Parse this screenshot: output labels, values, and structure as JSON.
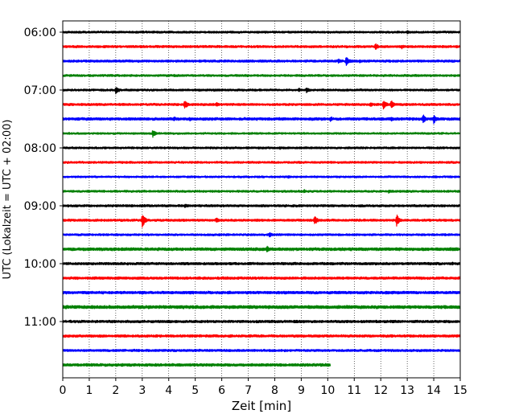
{
  "chart_data": {
    "type": "line",
    "title": "",
    "xlabel": "Zeit  [min]",
    "ylabel": "UTC (Lokalzeit = UTC + 02:00)",
    "xlim": [
      0,
      15
    ],
    "x_ticks": [
      0,
      1,
      2,
      3,
      4,
      5,
      6,
      7,
      8,
      9,
      10,
      11,
      12,
      13,
      14,
      15
    ],
    "x_grid": true,
    "y_grid": false,
    "y_ticks": [
      {
        "label": "06:00",
        "row": 0
      },
      {
        "label": "07:00",
        "row": 4
      },
      {
        "label": "08:00",
        "row": 8
      },
      {
        "label": "09:00",
        "row": 12
      },
      {
        "label": "10:00",
        "row": 16
      },
      {
        "label": "11:00",
        "row": 20
      }
    ],
    "row_colors": [
      "#000000",
      "#ff0000",
      "#0000ff",
      "#008000"
    ],
    "rows": [
      {
        "start": "06:00",
        "amp": 0.9,
        "end": 15,
        "events": [
          {
            "t": 13.0,
            "a": 2.5
          }
        ]
      },
      {
        "start": "06:15",
        "amp": 1.0,
        "end": 15,
        "events": [
          {
            "t": 11.8,
            "a": 4.5
          },
          {
            "t": 12.8,
            "a": 2.5
          },
          {
            "t": 5.5,
            "a": 1.8
          }
        ]
      },
      {
        "start": "06:30",
        "amp": 1.0,
        "end": 15,
        "events": [
          {
            "t": 10.7,
            "a": 6.5
          },
          {
            "t": 10.4,
            "a": 3.0
          },
          {
            "t": 11.2,
            "a": 2.5
          }
        ]
      },
      {
        "start": "06:45",
        "amp": 0.9,
        "end": 15,
        "events": [
          {
            "t": 4.2,
            "a": 1.8
          }
        ]
      },
      {
        "start": "07:00",
        "amp": 0.9,
        "end": 15,
        "events": [
          {
            "t": 2.0,
            "a": 5.0
          },
          {
            "t": 9.2,
            "a": 4.0
          },
          {
            "t": 8.9,
            "a": 2.5
          }
        ]
      },
      {
        "start": "07:15",
        "amp": 1.0,
        "end": 15,
        "events": [
          {
            "t": 4.6,
            "a": 6.0
          },
          {
            "t": 5.8,
            "a": 3.0
          },
          {
            "t": 12.1,
            "a": 6.5
          },
          {
            "t": 12.4,
            "a": 5.5
          },
          {
            "t": 11.6,
            "a": 3.0
          },
          {
            "t": 1.3,
            "a": 2.0
          }
        ]
      },
      {
        "start": "07:30",
        "amp": 1.2,
        "end": 15,
        "events": [
          {
            "t": 13.6,
            "a": 5.5
          },
          {
            "t": 14.0,
            "a": 6.0
          },
          {
            "t": 10.1,
            "a": 3.5
          },
          {
            "t": 12.4,
            "a": 3.0
          },
          {
            "t": 4.2,
            "a": 3.0
          },
          {
            "t": 4.8,
            "a": 2.5
          }
        ]
      },
      {
        "start": "07:45",
        "amp": 0.8,
        "end": 15,
        "events": [
          {
            "t": 3.4,
            "a": 5.0
          }
        ]
      },
      {
        "start": "08:00",
        "amp": 0.9,
        "end": 15,
        "events": [
          {
            "t": 8.2,
            "a": 2.0
          }
        ]
      },
      {
        "start": "08:15",
        "amp": 0.9,
        "end": 15,
        "events": [
          {
            "t": 13.5,
            "a": 1.5
          }
        ]
      },
      {
        "start": "08:30",
        "amp": 0.8,
        "end": 15,
        "events": [
          {
            "t": 8.5,
            "a": 1.8
          }
        ]
      },
      {
        "start": "08:45",
        "amp": 0.9,
        "end": 15,
        "events": [
          {
            "t": 9.1,
            "a": 2.5
          },
          {
            "t": 12.3,
            "a": 2.5
          }
        ]
      },
      {
        "start": "09:00",
        "amp": 1.0,
        "end": 15,
        "events": [
          {
            "t": 4.6,
            "a": 3.0
          },
          {
            "t": 3.1,
            "a": 1.5
          }
        ]
      },
      {
        "start": "09:15",
        "amp": 1.0,
        "end": 15,
        "events": [
          {
            "t": 3.0,
            "a": 9.0
          },
          {
            "t": 5.8,
            "a": 3.5
          },
          {
            "t": 9.5,
            "a": 6.0
          },
          {
            "t": 12.6,
            "a": 7.5
          }
        ]
      },
      {
        "start": "09:30",
        "amp": 0.9,
        "end": 15,
        "events": [
          {
            "t": 7.8,
            "a": 3.5
          }
        ]
      },
      {
        "start": "09:45",
        "amp": 1.3,
        "end": 15,
        "events": [
          {
            "t": 7.7,
            "a": 4.5
          },
          {
            "t": 2.0,
            "a": 2.0
          }
        ]
      },
      {
        "start": "10:00",
        "amp": 1.1,
        "end": 15,
        "events": [
          {
            "t": 14.7,
            "a": 2.0
          }
        ]
      },
      {
        "start": "10:15",
        "amp": 1.1,
        "end": 15,
        "events": [
          {
            "t": 6.2,
            "a": 1.8
          }
        ]
      },
      {
        "start": "10:30",
        "amp": 1.2,
        "end": 15,
        "events": [
          {
            "t": 12.2,
            "a": 2.5
          },
          {
            "t": 3.0,
            "a": 2.0
          }
        ]
      },
      {
        "start": "10:45",
        "amp": 1.4,
        "end": 15,
        "events": [
          {
            "t": 5.3,
            "a": 2.5
          },
          {
            "t": 10.8,
            "a": 2.0
          }
        ]
      },
      {
        "start": "11:00",
        "amp": 1.1,
        "end": 15,
        "events": [
          {
            "t": 14.6,
            "a": 1.8
          }
        ]
      },
      {
        "start": "11:15",
        "amp": 1.1,
        "end": 15,
        "events": [
          {
            "t": 2.2,
            "a": 1.5
          }
        ]
      },
      {
        "start": "11:30",
        "amp": 1.0,
        "end": 15,
        "events": [
          {
            "t": 5.6,
            "a": 2.0
          }
        ]
      },
      {
        "start": "11:45",
        "amp": 1.2,
        "end": 10.1,
        "events": [
          {
            "t": 6.0,
            "a": 1.8
          }
        ]
      }
    ]
  }
}
